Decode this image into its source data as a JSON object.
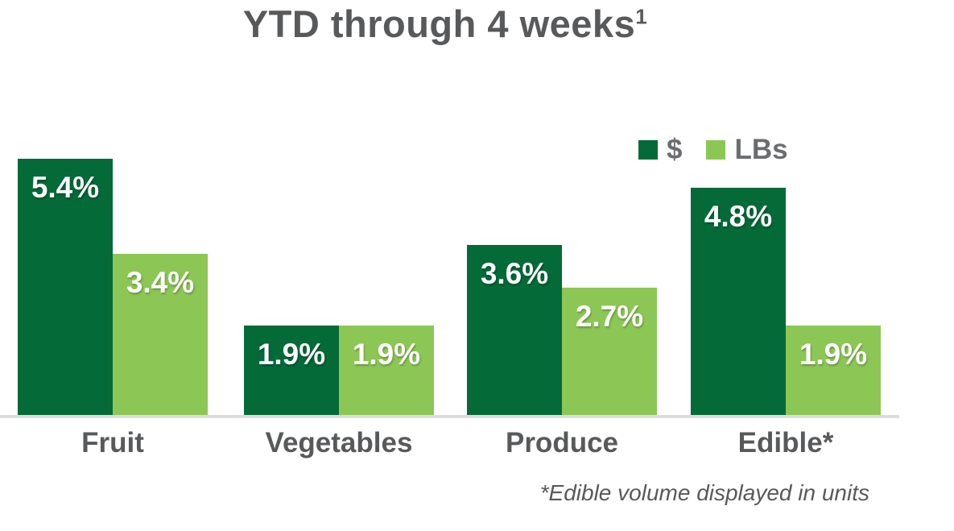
{
  "title": {
    "text": "YTD through 4 weeks",
    "superscript": "1"
  },
  "footnote": "*Edible volume displayed in units",
  "colors": {
    "dollars_green": "#046A38",
    "lbs_green": "#8CC755",
    "axis_line_gray": "#DCDCDC",
    "text_gray": "#58595B",
    "bar_label_white": "#FFFFFF"
  },
  "legend": {
    "items": [
      {
        "label": "$",
        "color": "#046A38"
      },
      {
        "label": "LBs",
        "color": "#8CC755"
      }
    ]
  },
  "chart_data": {
    "type": "bar",
    "title": "YTD through 4 weeks",
    "categories": [
      "Fruit",
      "Vegetables",
      "Produce",
      "Edible*"
    ],
    "series": [
      {
        "name": "$",
        "color": "#046A38",
        "values": [
          5.4,
          1.9,
          3.6,
          4.8
        ],
        "labels": [
          "5.4%",
          "1.9%",
          "3.6%",
          "4.8%"
        ]
      },
      {
        "name": "LBs",
        "color": "#8CC755",
        "values": [
          3.4,
          1.9,
          2.7,
          1.9
        ],
        "labels": [
          "3.4%",
          "1.9%",
          "2.7%",
          "1.9%"
        ]
      }
    ],
    "value_format": "percent",
    "ylim": [
      0,
      5.6
    ],
    "grid": false,
    "y_axis_visible": false,
    "legend_position": "top-right",
    "annotations": [
      "*Edible volume displayed in units"
    ]
  }
}
